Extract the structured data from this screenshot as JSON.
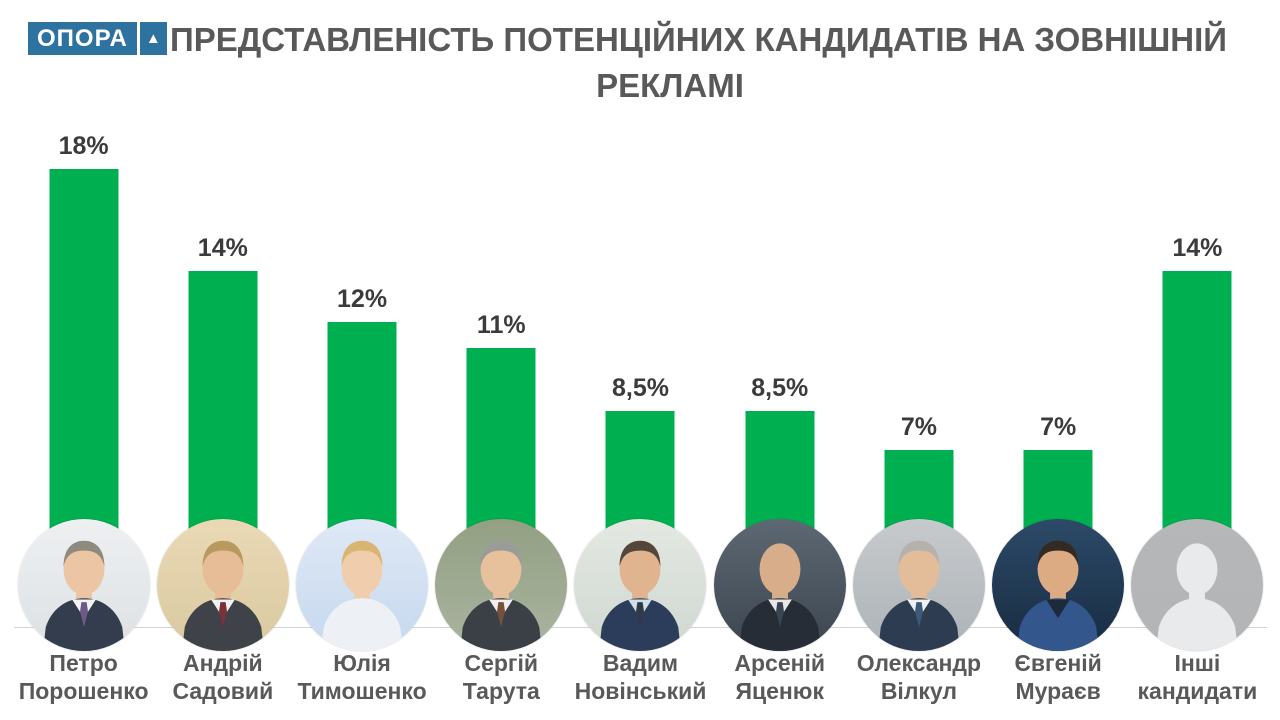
{
  "logo": {
    "text": "ОПОРА",
    "symbol": "▲",
    "brand_color": "#2e72a0"
  },
  "title": {
    "full": "ПРЕДСТАВЛЕНІСТЬ ПОТЕНЦІЙНИХ КАНДИДАТІВ НА ЗОВНІШНІЙ РЕКЛАМІ",
    "line1": "ПРЕДСТАВЛЕНІСТЬ ПОТЕНЦІЙНИХ КАНДИДАТІВ НА ЗОВНІШНІЙ",
    "line2": "РЕКЛАМІ"
  },
  "chart_data": {
    "type": "bar",
    "title": "ПРЕДСТАВЛЕНІСТЬ ПОТЕНЦІЙНИХ КАНДИДАТІВ НА ЗОВНІШНІЙ РЕКЛАМІ",
    "categories": [
      "Петро Порошенко",
      "Андрій Садовий",
      "Юлія Тимошенко",
      "Сергій Тарута",
      "Вадим Новінський",
      "Арсеній Яценюк",
      "Олександр Вілкул",
      "Євгеній Мураєв",
      "Інші кандидати"
    ],
    "values": [
      18,
      14,
      12,
      11,
      8.5,
      8.5,
      7,
      7,
      14
    ],
    "value_labels": [
      "18%",
      "14%",
      "12%",
      "11%",
      "8,5%",
      "8,5%",
      "7%",
      "7%",
      "14%"
    ],
    "bar_color": "#00AF50",
    "xlabel": "",
    "ylabel": "",
    "ylim": [
      0,
      19.5
    ],
    "grid": false,
    "legend": "none"
  },
  "candidates": [
    {
      "name_line1": "Петро",
      "name_line2": "Порошенко",
      "value": 18,
      "value_label": "18%",
      "photo": {
        "bg1": "#eef0f2",
        "bg2": "#dde1e4",
        "hair": "#8f8a7e",
        "skin": "#ecc6a4",
        "suit": "#333d4d",
        "shirt": "#f5f5f5",
        "tie": "#6e5a86"
      }
    },
    {
      "name_line1": "Андрій",
      "name_line2": "Садовий",
      "value": 14,
      "value_label": "14%",
      "photo": {
        "bg1": "#ead9b5",
        "bg2": "#d9c9a0",
        "hair": "#b99a5e",
        "skin": "#e6bd97",
        "suit": "#3f4248",
        "shirt": "#f2f2f2",
        "tie": "#7c3038"
      }
    },
    {
      "name_line1": "Юлія",
      "name_line2": "Тимошенко",
      "value": 12,
      "value_label": "12%",
      "photo": {
        "bg1": "#dfe9f6",
        "bg2": "#c5d8ee",
        "hair": "#d8b671",
        "skin": "#f0cead",
        "suit": "#edf0f4",
        "shirt": "transparent",
        "tie": "transparent"
      }
    },
    {
      "name_line1": "Сергій",
      "name_line2": "Тарута",
      "value": 11,
      "value_label": "11%",
      "photo": {
        "bg1": "#93a083",
        "bg2": "#aab3a0",
        "hair": "#9b9b97",
        "skin": "#e7c09c",
        "suit": "#3a4046",
        "shirt": "#efefef",
        "tie": "#77503a"
      }
    },
    {
      "name_line1": "Вадим",
      "name_line2": "Новінський",
      "value": 8.5,
      "value_label": "8,5%",
      "photo": {
        "bg1": "#e4e8e2",
        "bg2": "#cfd8d0",
        "hair": "#55453a",
        "skin": "#e0b48e",
        "suit": "#2c3d5c",
        "shirt": "#cfe0ec",
        "tie": "#2f3a46"
      }
    },
    {
      "name_line1": "Арсеній",
      "name_line2": "Яценюк",
      "value": 8.5,
      "value_label": "8,5%",
      "photo": {
        "bg1": "#5d6873",
        "bg2": "#3c4550",
        "hair": "transparent",
        "skin": "#d8ad89",
        "suit": "#272d36",
        "shirt": "#e8e8e8",
        "tie": "#3a4450"
      }
    },
    {
      "name_line1": "Олександр",
      "name_line2": "Вілкул",
      "value": 7,
      "value_label": "7%",
      "photo": {
        "bg1": "#c6cacd",
        "bg2": "#aeb3b7",
        "hair": "#b5b2ad",
        "skin": "#e3bc9a",
        "suit": "#2e3c52",
        "shirt": "#eef0f2",
        "tie": "#3e5a7a"
      }
    },
    {
      "name_line1": "Євгеній",
      "name_line2": "Мураєв",
      "value": 7,
      "value_label": "7%",
      "photo": {
        "bg1": "#2c4a68",
        "bg2": "#182b40",
        "hair": "#352a22",
        "skin": "#dcab83",
        "suit": "#33568c",
        "shirt": "#1d2a3a",
        "tie": "transparent"
      }
    },
    {
      "name_line1": "Інші",
      "name_line2": "кандидати",
      "value": 14,
      "value_label": "14%",
      "photo": {
        "bg1": "#b5b7b9",
        "bg2": "#b2b4b6",
        "hair": "transparent",
        "skin": "#e9eaeb",
        "suit": "#e9eaeb",
        "shirt": "transparent",
        "tie": "transparent"
      }
    }
  ]
}
